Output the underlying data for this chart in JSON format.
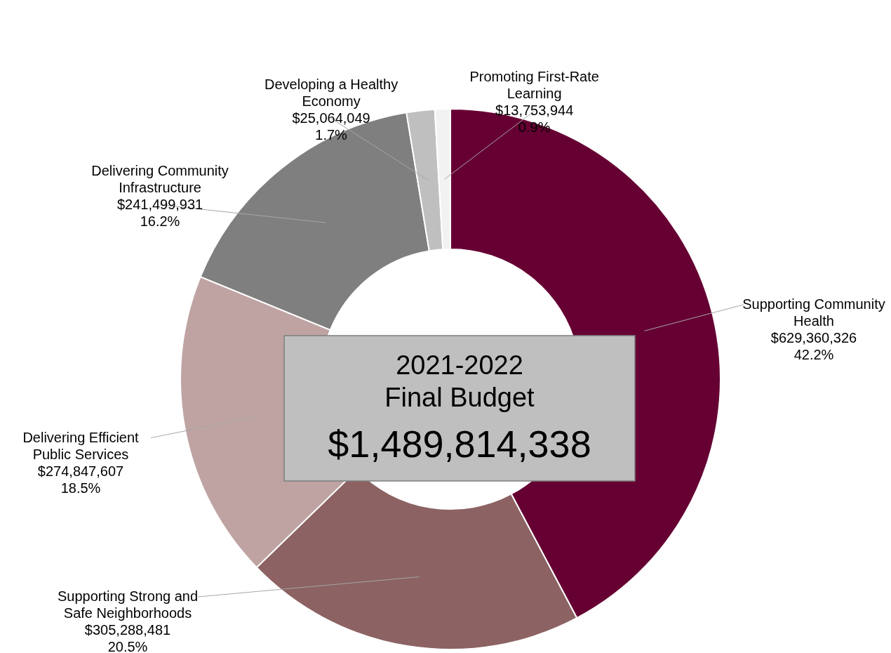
{
  "chart_data": {
    "type": "donut",
    "title": "2021-2022\nFinal Budget",
    "subtitle": "$1,489,814,338",
    "categories": [
      "Supporting Community Health",
      "Supporting Strong and Safe Neighborhoods",
      "Delivering Efficient Public Services",
      "Delivering Community Infrastructure",
      "Developing a Healthy Economy",
      "Promoting First-Rate Learning"
    ],
    "values": [
      629360326,
      305288481,
      274847607,
      241499931,
      25064049,
      13753944
    ],
    "value_labels": [
      "$629,360,326\n42.2%",
      "$305,288,481\n20.5%",
      "$274,847,607\n18.5%",
      "$241,499,931\n16.2%",
      "$25,064,049\n1.7%",
      "$13,753,944\n0.9%"
    ],
    "colors": [
      "#660033",
      "#8c6262",
      "#bfa3a3",
      "#7f7f7f",
      "#bfbfbf",
      "#f2f2f2"
    ]
  }
}
